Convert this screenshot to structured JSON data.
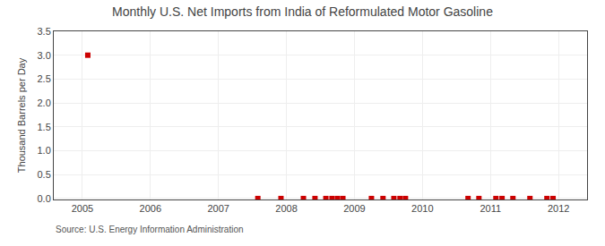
{
  "chart_data": {
    "type": "scatter",
    "title": "Monthly U.S. Net Imports from India of Reformulated Motor Gasoline",
    "ylabel": "Thousand Barrels per Day",
    "annotations": [
      "Source: U.S. Energy Information Administration"
    ],
    "x": [
      2005.08,
      2007.58,
      2007.92,
      2008.25,
      2008.42,
      2008.58,
      2008.67,
      2008.75,
      2008.83,
      2009.25,
      2009.42,
      2009.58,
      2009.67,
      2009.75,
      2010.67,
      2010.83,
      2011.08,
      2011.17,
      2011.33,
      2011.58,
      2011.83,
      2011.92
    ],
    "values": [
      3.0,
      0.0,
      0.0,
      0.0,
      0.0,
      0.0,
      0.0,
      0.0,
      0.0,
      0.0,
      0.0,
      0.0,
      0.0,
      0.0,
      0.0,
      0.0,
      0.0,
      0.0,
      0.0,
      0.0,
      0.0,
      0.0
    ],
    "color": "#cc0000",
    "marker": "square",
    "xlim": [
      2004.58,
      2012.42
    ],
    "ylim": [
      -0.02,
      3.5
    ],
    "xticks": [
      2005,
      2006,
      2007,
      2008,
      2009,
      2010,
      2011,
      2012
    ],
    "yticks": [
      {
        "value": 0.0,
        "label": "0.0"
      },
      0.5,
      {
        "value": 1.0,
        "label": "1.0"
      },
      1.5,
      {
        "value": 2.0,
        "label": "2.0"
      },
      2.5,
      {
        "value": 3.0,
        "label": "3.0"
      },
      3.5
    ],
    "grid": true
  }
}
